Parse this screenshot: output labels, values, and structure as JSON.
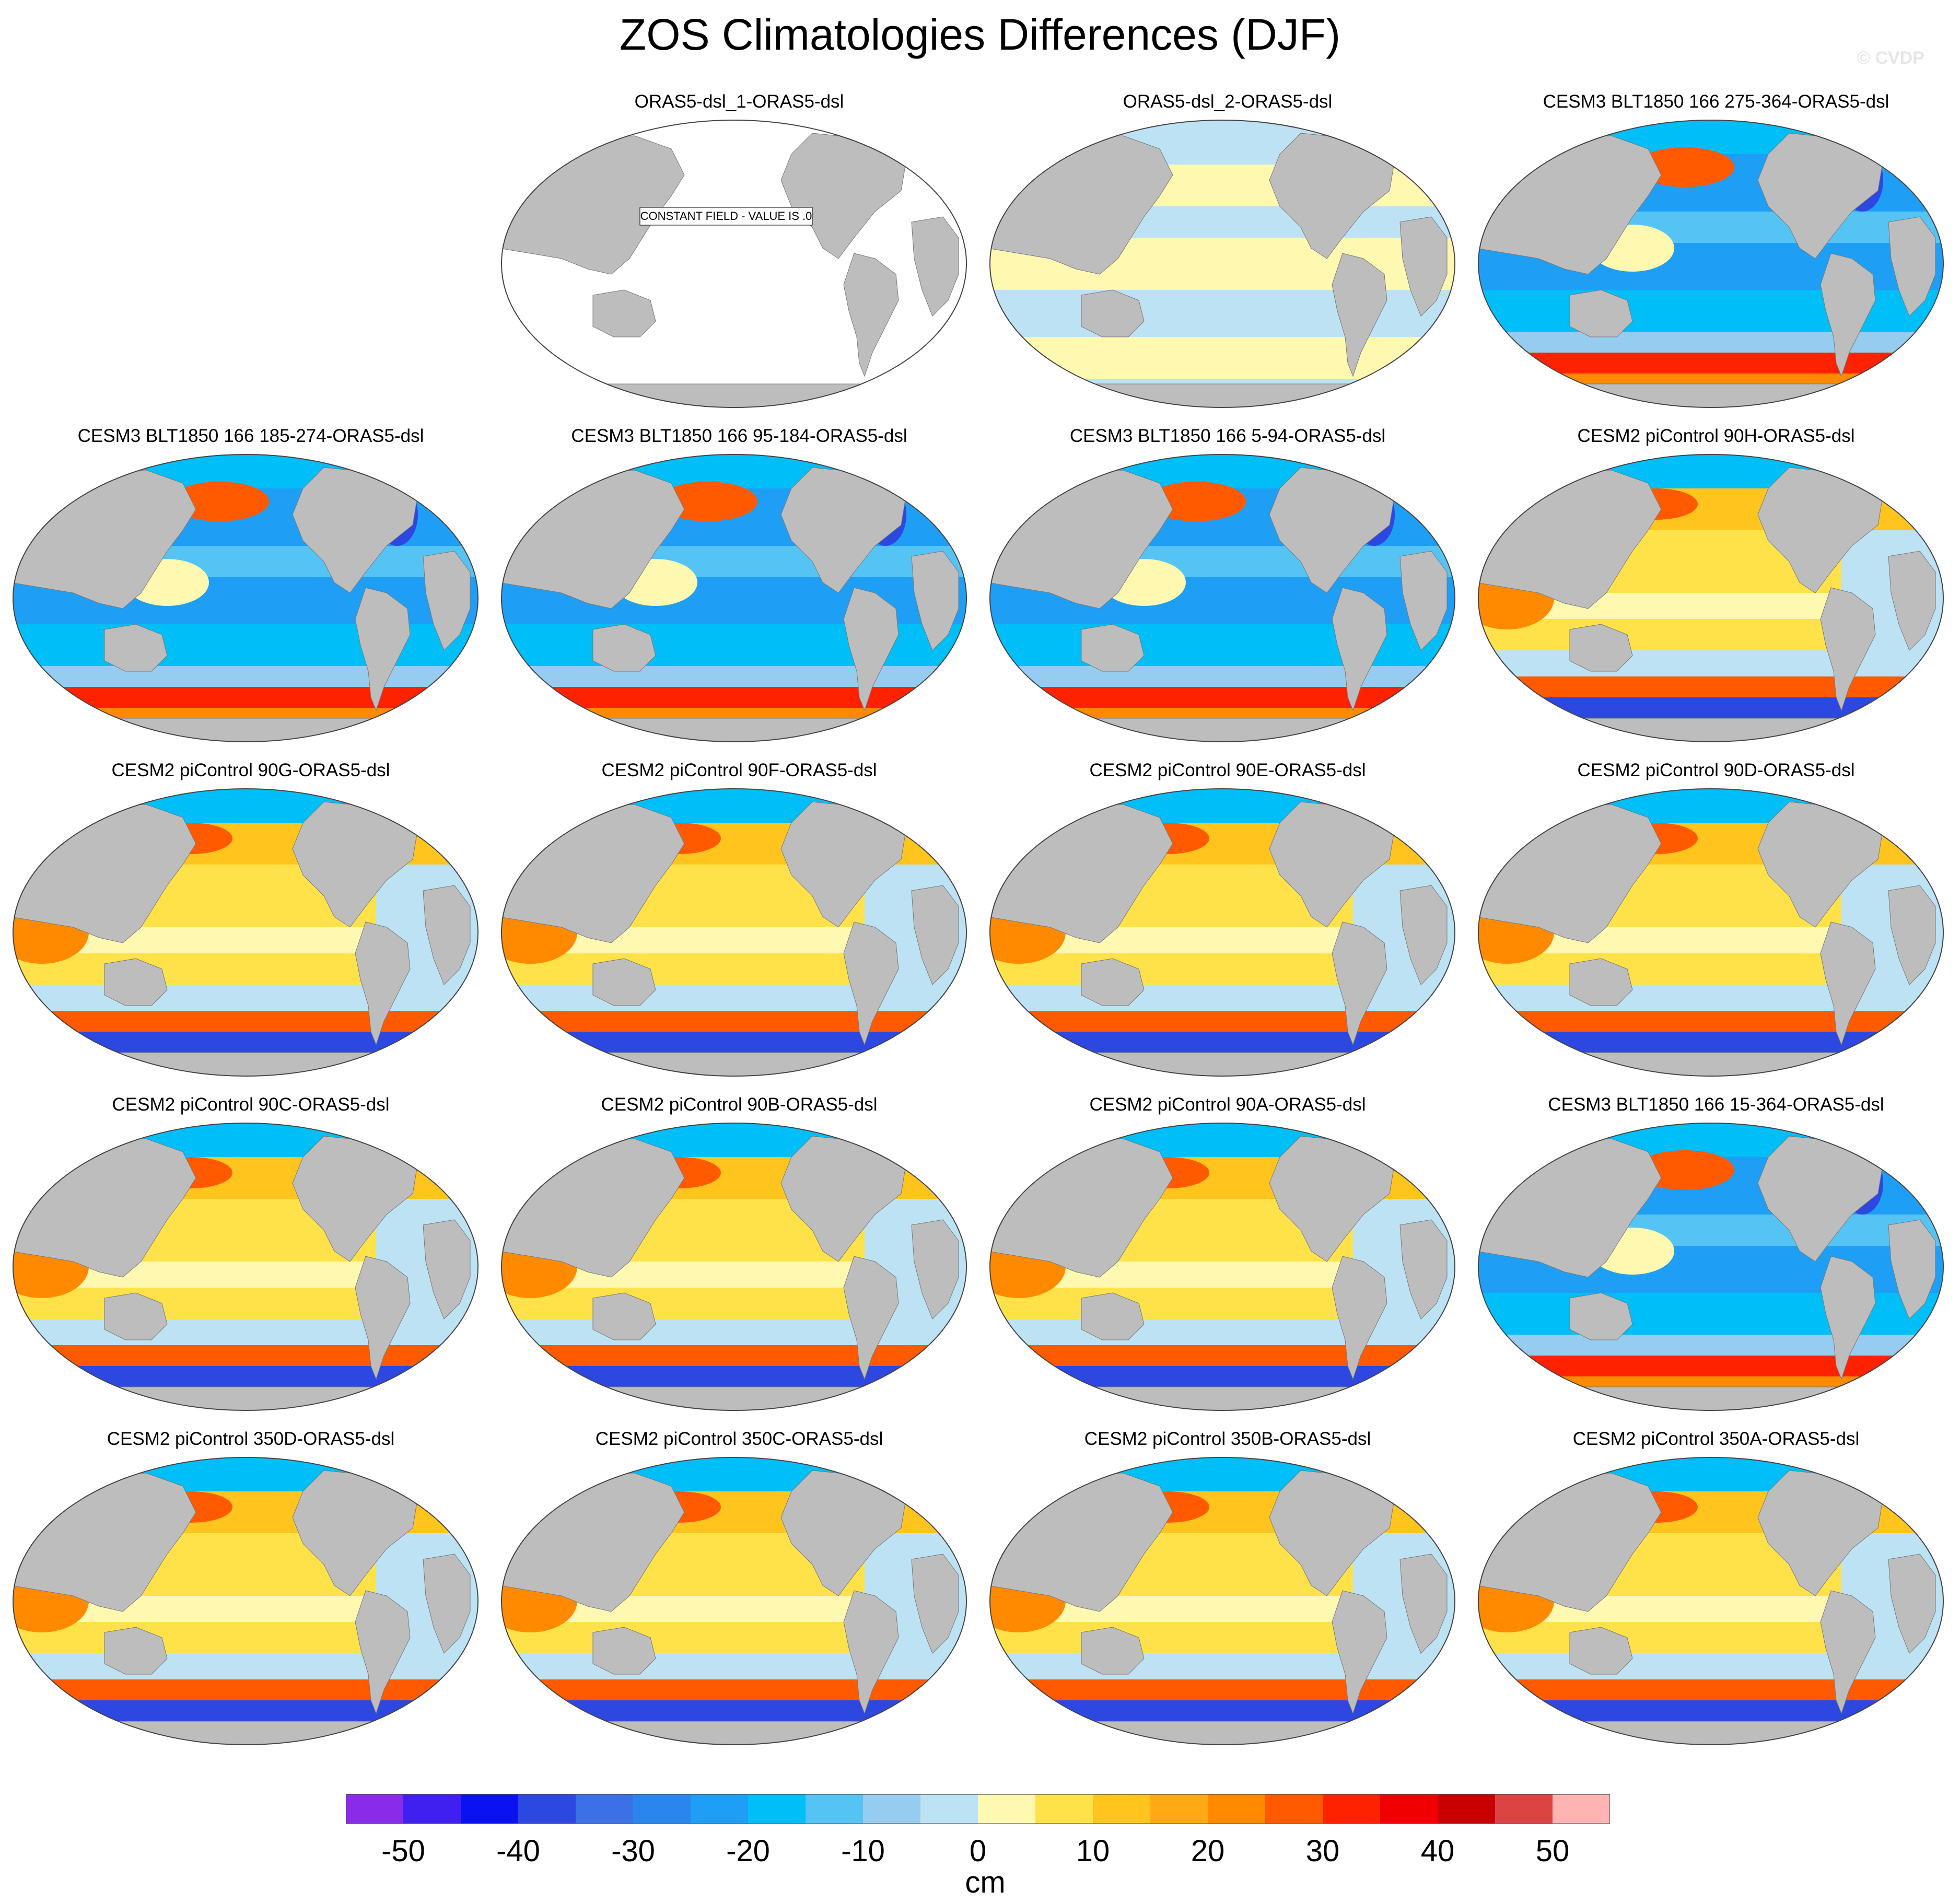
{
  "title": "ZOS Climatologies Differences (DJF)",
  "watermark": "© CVDP",
  "colorbar": {
    "units": "cm",
    "tick_labels": [
      "-50",
      "-40",
      "-30",
      "-20",
      "-10",
      "0",
      "10",
      "20",
      "30",
      "40",
      "50"
    ],
    "colors": [
      "#8a2bea",
      "#4020f0",
      "#0a12f2",
      "#2c48e0",
      "#3c70e6",
      "#2a86ee",
      "#1f9ef6",
      "#00bef8",
      "#55c4f4",
      "#96ccf0",
      "#bce2f4",
      "#fff8b0",
      "#ffe24a",
      "#ffc41e",
      "#ffaa14",
      "#ff8a00",
      "#ff5a00",
      "#ff2200",
      "#f00000",
      "#c80000",
      "#dc4444",
      "#ffb4b4"
    ]
  },
  "land_color": "#bdbdbd",
  "panels": [
    {
      "title": "ORAS5-dsl_1-ORAS5-dsl",
      "pattern": "constant",
      "note": "CONSTANT FIELD - VALUE IS .0"
    },
    {
      "title": "ORAS5-dsl_2-ORAS5-dsl",
      "pattern": "near-zero"
    },
    {
      "title": "CESM3 BLT1850 166 275-364-ORAS5-dsl",
      "pattern": "cesm3"
    },
    {
      "title": "CESM3 BLT1850 166 185-274-ORAS5-dsl",
      "pattern": "cesm3"
    },
    {
      "title": "CESM3 BLT1850 166 95-184-ORAS5-dsl",
      "pattern": "cesm3"
    },
    {
      "title": "CESM3 BLT1850 166 5-94-ORAS5-dsl",
      "pattern": "cesm3"
    },
    {
      "title": "CESM2 piControl 90H-ORAS5-dsl",
      "pattern": "cesm2"
    },
    {
      "title": "CESM2 piControl 90G-ORAS5-dsl",
      "pattern": "cesm2"
    },
    {
      "title": "CESM2 piControl 90F-ORAS5-dsl",
      "pattern": "cesm2"
    },
    {
      "title": "CESM2 piControl 90E-ORAS5-dsl",
      "pattern": "cesm2"
    },
    {
      "title": "CESM2 piControl 90D-ORAS5-dsl",
      "pattern": "cesm2"
    },
    {
      "title": "CESM2 piControl 90C-ORAS5-dsl",
      "pattern": "cesm2"
    },
    {
      "title": "CESM2 piControl 90B-ORAS5-dsl",
      "pattern": "cesm2"
    },
    {
      "title": "CESM2 piControl 90A-ORAS5-dsl",
      "pattern": "cesm2"
    },
    {
      "title": "CESM3 BLT1850 166 15-364-ORAS5-dsl",
      "pattern": "cesm3"
    },
    {
      "title": "CESM2 piControl 350D-ORAS5-dsl",
      "pattern": "cesm2"
    },
    {
      "title": "CESM2 piControl 350C-ORAS5-dsl",
      "pattern": "cesm2"
    },
    {
      "title": "CESM2 piControl 350B-ORAS5-dsl",
      "pattern": "cesm2"
    },
    {
      "title": "CESM2 piControl 350A-ORAS5-dsl",
      "pattern": "cesm2"
    }
  ]
}
